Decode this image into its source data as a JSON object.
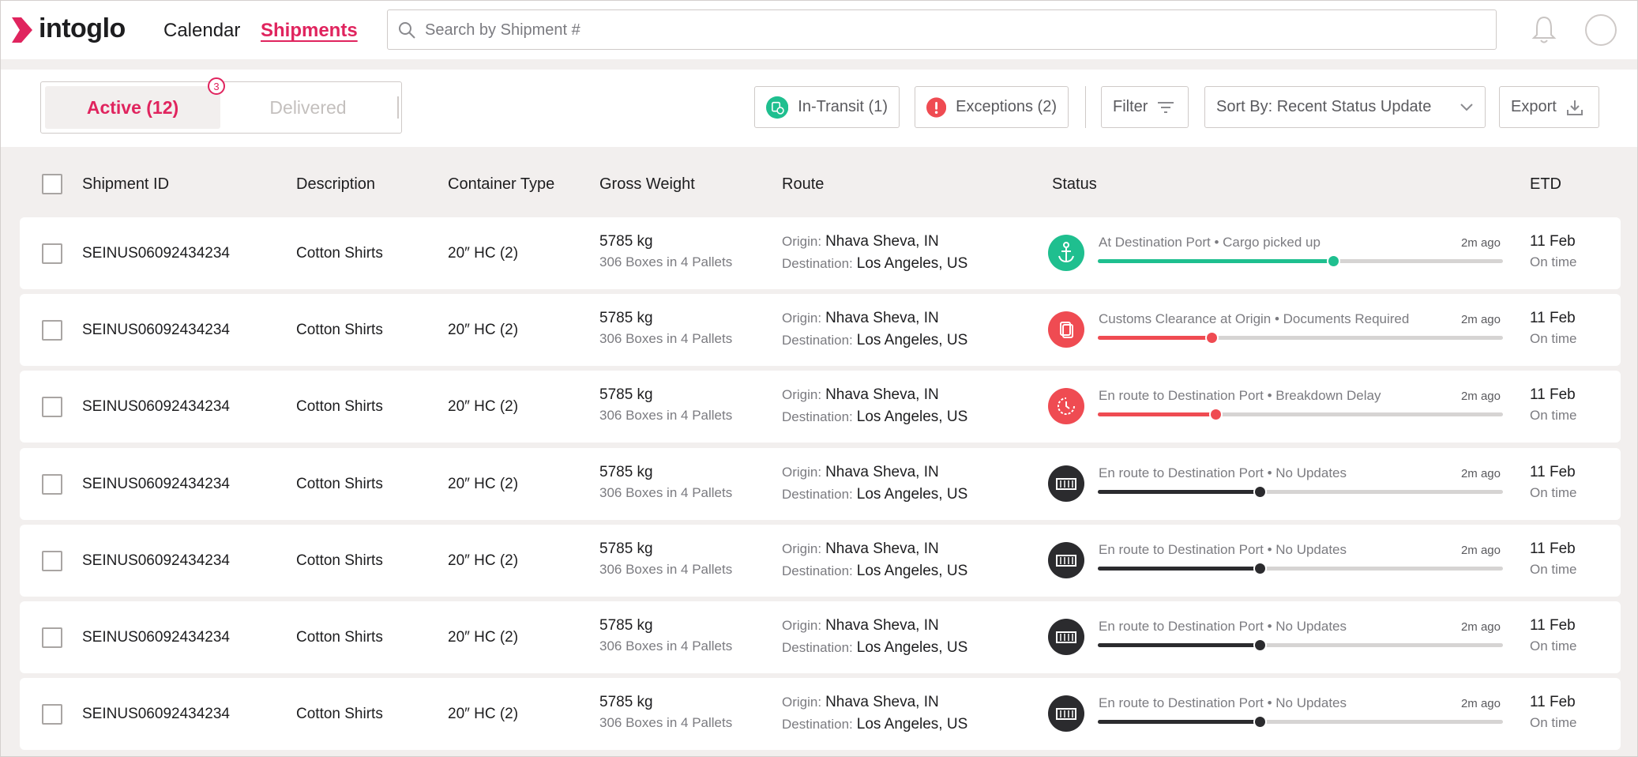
{
  "header": {
    "logo": "intoglo",
    "nav": [
      "Calendar",
      "Shipments"
    ],
    "search_placeholder": "Search by Shipment #"
  },
  "toolbar": {
    "tabs": [
      "Active (12)",
      "Delivered"
    ],
    "badge": 3,
    "in_transit": "In-Transit (1)",
    "exceptions": "Exceptions (2)",
    "filter": "Filter",
    "sort": "Sort By: Recent Status Update",
    "export": "Export"
  },
  "table": {
    "columns": [
      "Shipment ID",
      "Description",
      "Container Type",
      "Gross Weight",
      "Route",
      "Status",
      "ETD"
    ],
    "rows": [
      {
        "id": "SEINUS06092434234",
        "description": "Cotton Shirts",
        "container": "20″ HC (2)",
        "weight": "5785 kg",
        "packages": "306 Boxes in 4 Pallets",
        "origin_label": "Origin:",
        "origin": "Nhava Sheva, IN",
        "destination_label": "Destination:",
        "destination": "Los Angeles, US",
        "status": "At Destination Port • Cargo picked up",
        "updated": "2m ago",
        "progress": 58,
        "color": "#1fbf8f",
        "icon": "anchor",
        "etd": "11 Feb",
        "etd_note": "On time"
      },
      {
        "id": "SEINUS06092434234",
        "description": "Cotton Shirts",
        "container": "20″ HC (2)",
        "weight": "5785 kg",
        "packages": "306 Boxes in 4 Pallets",
        "origin_label": "Origin:",
        "origin": "Nhava Sheva, IN",
        "destination_label": "Destination:",
        "destination": "Los Angeles, US",
        "status": "Customs Clearance at Origin • Documents Required",
        "updated": "2m ago",
        "progress": 28,
        "color": "#ef4b52",
        "icon": "document",
        "etd": "11 Feb",
        "etd_note": "On time"
      },
      {
        "id": "SEINUS06092434234",
        "description": "Cotton Shirts",
        "container": "20″ HC (2)",
        "weight": "5785 kg",
        "packages": "306 Boxes in 4 Pallets",
        "origin_label": "Origin:",
        "origin": "Nhava Sheva, IN",
        "destination_label": "Destination:",
        "destination": "Los Angeles, US",
        "status": "En route to Destination Port • Breakdown Delay",
        "updated": "2m ago",
        "progress": 29,
        "color": "#ef4b52",
        "icon": "clock",
        "etd": "11 Feb",
        "etd_note": "On time"
      },
      {
        "id": "SEINUS06092434234",
        "description": "Cotton Shirts",
        "container": "20″ HC (2)",
        "weight": "5785 kg",
        "packages": "306 Boxes in 4 Pallets",
        "origin_label": "Origin:",
        "origin": "Nhava Sheva, IN",
        "destination_label": "Destination:",
        "destination": "Los Angeles, US",
        "status": "En route to Destination Port • No Updates",
        "updated": "2m ago",
        "progress": 40,
        "color": "#2b2b2e",
        "icon": "container",
        "etd": "11 Feb",
        "etd_note": "On time"
      },
      {
        "id": "SEINUS06092434234",
        "description": "Cotton Shirts",
        "container": "20″ HC (2)",
        "weight": "5785 kg",
        "packages": "306 Boxes in 4 Pallets",
        "origin_label": "Origin:",
        "origin": "Nhava Sheva, IN",
        "destination_label": "Destination:",
        "destination": "Los Angeles, US",
        "status": "En route to Destination Port • No Updates",
        "updated": "2m ago",
        "progress": 40,
        "color": "#2b2b2e",
        "icon": "container",
        "etd": "11 Feb",
        "etd_note": "On time"
      },
      {
        "id": "SEINUS06092434234",
        "description": "Cotton Shirts",
        "container": "20″ HC (2)",
        "weight": "5785 kg",
        "packages": "306 Boxes in 4 Pallets",
        "origin_label": "Origin:",
        "origin": "Nhava Sheva, IN",
        "destination_label": "Destination:",
        "destination": "Los Angeles, US",
        "status": "En route to Destination Port • No Updates",
        "updated": "2m ago",
        "progress": 40,
        "color": "#2b2b2e",
        "icon": "container",
        "etd": "11 Feb",
        "etd_note": "On time"
      },
      {
        "id": "SEINUS06092434234",
        "description": "Cotton Shirts",
        "container": "20″ HC (2)",
        "weight": "5785 kg",
        "packages": "306 Boxes in 4 Pallets",
        "origin_label": "Origin:",
        "origin": "Nhava Sheva, IN",
        "destination_label": "Destination:",
        "destination": "Los Angeles, US",
        "status": "En route to Destination Port • No Updates",
        "updated": "2m ago",
        "progress": 40,
        "color": "#2b2b2e",
        "icon": "container",
        "etd": "11 Feb",
        "etd_note": "On time"
      }
    ]
  }
}
